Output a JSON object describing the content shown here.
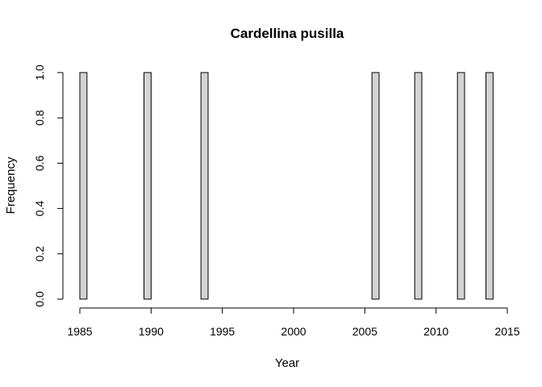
{
  "chart_data": {
    "type": "bar",
    "title": "Cardellina pusilla",
    "xlabel": "Year",
    "ylabel": "Frequency",
    "xlim": [
      1985,
      2015
    ],
    "ylim": [
      0,
      1
    ],
    "x_ticks": [
      "1985",
      "1990",
      "1995",
      "2000",
      "2005",
      "2010",
      "2015"
    ],
    "y_ticks": [
      "0.0",
      "0.2",
      "0.4",
      "0.6",
      "0.8",
      "1.0"
    ],
    "bin_width": 0.5,
    "bins": [
      {
        "start": 1985.0,
        "value": 1
      },
      {
        "start": 1989.5,
        "value": 1
      },
      {
        "start": 1993.5,
        "value": 1
      },
      {
        "start": 2005.5,
        "value": 1
      },
      {
        "start": 2008.5,
        "value": 1
      },
      {
        "start": 2011.5,
        "value": 1
      },
      {
        "start": 2013.5,
        "value": 1
      }
    ],
    "bar_fill": "#d3d3d3",
    "grid": false
  }
}
